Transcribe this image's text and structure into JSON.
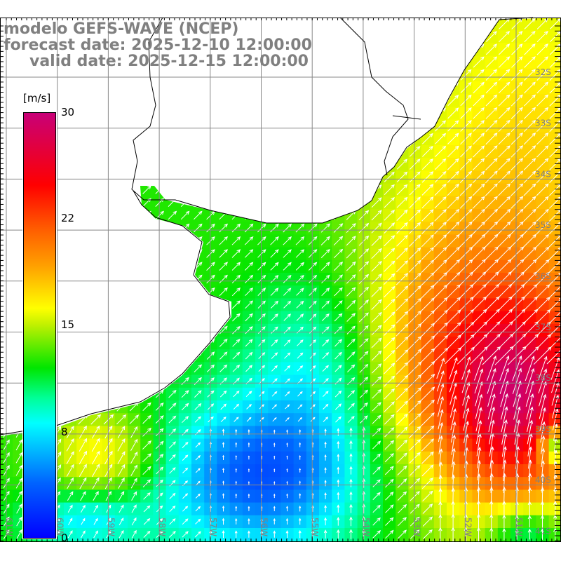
{
  "title": {
    "line1": "modelo GEFS-WAVE (NCEP)",
    "line2": "forecast date: 2025-12-10 12:00:00",
    "line3": "valid date: 2025-12-15 12:00:00"
  },
  "colorbar": {
    "unit": "[m/s]",
    "labels": [
      "30",
      "22",
      "15",
      "8",
      "0"
    ],
    "colors": [
      "#c80078",
      "#ff0000",
      "#ff5a00",
      "#ffa000",
      "#ffff00",
      "#bef000",
      "#00e600",
      "#00ffff",
      "#0064ff",
      "#0000ff"
    ]
  },
  "map": {
    "variable": "wind speed",
    "lon_labels": [
      "61W",
      "60W",
      "59W",
      "58W",
      "57W",
      "56W",
      "55W",
      "54W",
      "53W",
      "52W",
      "51W"
    ],
    "lat_labels": [
      "32S",
      "33S",
      "34S",
      "35S",
      "36S",
      "37S",
      "38S",
      "39S",
      "40S",
      "41S"
    ],
    "grid_color": "#888888",
    "land_color": "#ffffff",
    "arrow_color": "#ffffff"
  }
}
